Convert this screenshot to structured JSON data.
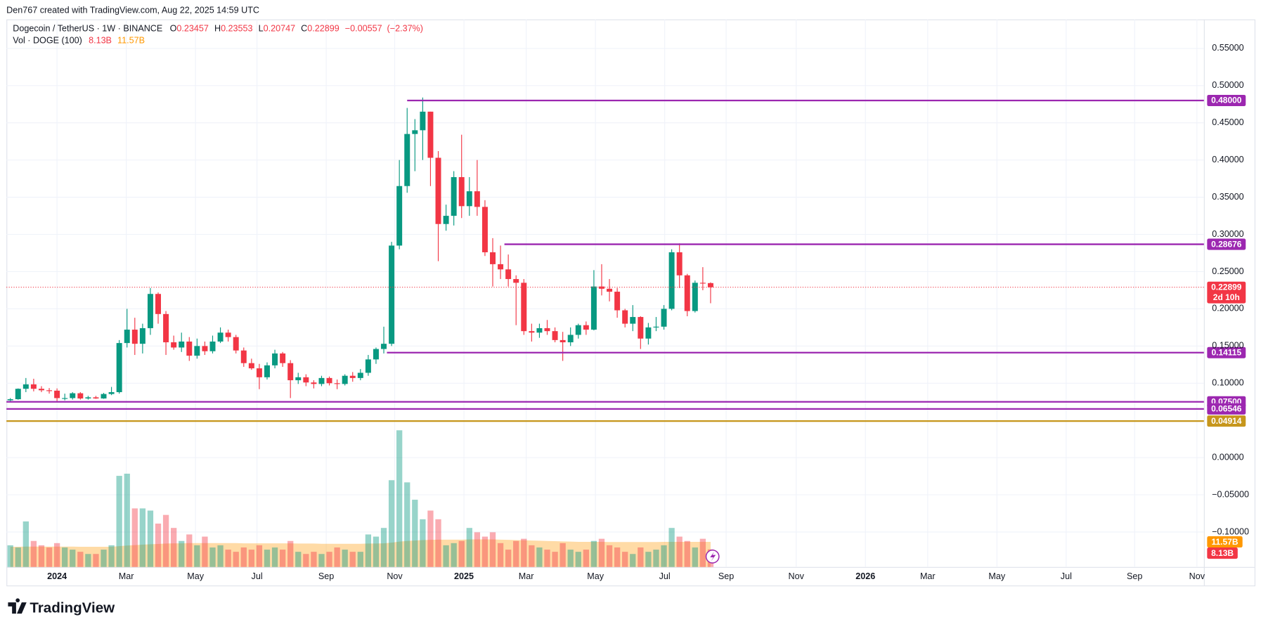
{
  "header": "Den767 created with TradingView.com, Aug 22, 2025 14:59 UTC",
  "chart_data": {
    "type": "candlestick",
    "title": "Dogecoin / TetherUS · 1W · BINANCE",
    "ohlc_legend": [
      {
        "label": "O",
        "value": 0.23457
      },
      {
        "label": "H",
        "value": 0.23553
      },
      {
        "label": "L",
        "value": 0.20747
      },
      {
        "label": "C",
        "value": 0.22899
      }
    ],
    "change": {
      "value": -0.00557,
      "label": "−0.00557"
    },
    "change_pct": {
      "value": -2.37,
      "label": "(−2.37%)"
    },
    "up_color": "#089981",
    "down_color": "#f23645",
    "open": [
      0.077,
      0.0785,
      0.0925,
      0.0985,
      0.0925,
      0.0905,
      0.09,
      0.08,
      0.08,
      0.0865,
      0.0795,
      0.081,
      0.0795,
      0.0855,
      0.088,
      0.154,
      0.172,
      0.153,
      0.174,
      0.22,
      0.193,
      0.155,
      0.148,
      0.156,
      0.137,
      0.15,
      0.143,
      0.156,
      0.168,
      0.162,
      0.144,
      0.127,
      0.12,
      0.108,
      0.124,
      0.14,
      0.127,
      0.104,
      0.108,
      0.101,
      0.099,
      0.107,
      0.1,
      0.099,
      0.11,
      0.107,
      0.114,
      0.132,
      0.146,
      0.153,
      0.285,
      0.365,
      0.435,
      0.44,
      0.465,
      0.403,
      0.314,
      0.325,
      0.377,
      0.338,
      0.358,
      0.337,
      0.276,
      0.26,
      0.253,
      0.24,
      0.235,
      0.17,
      0.168,
      0.174,
      0.17,
      0.158,
      0.155,
      0.165,
      0.178,
      0.172,
      0.23,
      0.227,
      0.223,
      0.198,
      0.18,
      0.189,
      0.16,
      0.175,
      0.176,
      0.2,
      0.276,
      0.245,
      0.197,
      0.235,
      0.23457
    ],
    "high": [
      0.08,
      0.093,
      0.107,
      0.106,
      0.096,
      0.0935,
      0.093,
      0.086,
      0.088,
      0.088,
      0.083,
      0.083,
      0.087,
      0.095,
      0.158,
      0.2,
      0.188,
      0.18,
      0.228,
      0.222,
      0.197,
      0.164,
      0.168,
      0.162,
      0.16,
      0.156,
      0.164,
      0.175,
      0.172,
      0.165,
      0.148,
      0.133,
      0.126,
      0.128,
      0.145,
      0.142,
      0.131,
      0.114,
      0.112,
      0.104,
      0.11,
      0.109,
      0.105,
      0.112,
      0.115,
      0.119,
      0.138,
      0.148,
      0.176,
      0.29,
      0.4,
      0.47,
      0.455,
      0.484,
      0.465,
      0.412,
      0.34,
      0.385,
      0.434,
      0.377,
      0.4,
      0.346,
      0.295,
      0.285,
      0.273,
      0.245,
      0.24,
      0.18,
      0.18,
      0.185,
      0.175,
      0.169,
      0.175,
      0.18,
      0.183,
      0.252,
      0.26,
      0.24,
      0.228,
      0.2,
      0.205,
      0.19,
      0.181,
      0.189,
      0.205,
      0.28,
      0.288,
      0.247,
      0.238,
      0.256,
      0.23553
    ],
    "low": [
      0.0745,
      0.0778,
      0.088,
      0.089,
      0.088,
      0.086,
      0.076,
      0.077,
      0.078,
      0.078,
      0.078,
      0.079,
      0.079,
      0.084,
      0.086,
      0.148,
      0.138,
      0.14,
      0.165,
      0.18,
      0.138,
      0.145,
      0.142,
      0.13,
      0.133,
      0.138,
      0.14,
      0.154,
      0.156,
      0.14,
      0.122,
      0.118,
      0.092,
      0.105,
      0.12,
      0.122,
      0.08,
      0.099,
      0.096,
      0.093,
      0.096,
      0.097,
      0.092,
      0.097,
      0.102,
      0.104,
      0.11,
      0.126,
      0.14,
      0.15,
      0.28,
      0.356,
      0.385,
      0.4,
      0.365,
      0.264,
      0.305,
      0.312,
      0.322,
      0.325,
      0.325,
      0.271,
      0.23,
      0.24,
      0.23,
      0.178,
      0.165,
      0.156,
      0.161,
      0.165,
      0.155,
      0.13,
      0.15,
      0.16,
      0.165,
      0.171,
      0.218,
      0.21,
      0.188,
      0.175,
      0.17,
      0.146,
      0.152,
      0.17,
      0.172,
      0.198,
      0.228,
      0.19,
      0.195,
      0.225,
      0.20747
    ],
    "close": [
      0.0785,
      0.0925,
      0.0985,
      0.0925,
      0.0905,
      0.09,
      0.08,
      0.08,
      0.0865,
      0.0795,
      0.081,
      0.0795,
      0.0855,
      0.088,
      0.154,
      0.172,
      0.153,
      0.174,
      0.22,
      0.193,
      0.155,
      0.148,
      0.156,
      0.137,
      0.15,
      0.143,
      0.156,
      0.168,
      0.162,
      0.144,
      0.127,
      0.12,
      0.108,
      0.124,
      0.14,
      0.127,
      0.104,
      0.108,
      0.101,
      0.099,
      0.107,
      0.1,
      0.099,
      0.11,
      0.107,
      0.114,
      0.132,
      0.146,
      0.153,
      0.285,
      0.365,
      0.435,
      0.44,
      0.465,
      0.403,
      0.314,
      0.325,
      0.377,
      0.338,
      0.358,
      0.337,
      0.276,
      0.26,
      0.253,
      0.24,
      0.235,
      0.17,
      0.168,
      0.174,
      0.17,
      0.158,
      0.155,
      0.165,
      0.178,
      0.172,
      0.23,
      0.227,
      0.223,
      0.198,
      0.18,
      0.189,
      0.16,
      0.175,
      0.176,
      0.2,
      0.276,
      0.245,
      0.197,
      0.235,
      0.2346,
      0.22899
    ],
    "volume": {
      "name": "Vol · DOGE (100)",
      "values": [
        10,
        9,
        21,
        12,
        10,
        9,
        11,
        9,
        8,
        7,
        6,
        6,
        8,
        10,
        42,
        43,
        27,
        27,
        26,
        20,
        24,
        18,
        12,
        15,
        10,
        14,
        9,
        10,
        8,
        7,
        9,
        8,
        10,
        8,
        9,
        8,
        12,
        7,
        6,
        7,
        6,
        7,
        9,
        8,
        7,
        7,
        15,
        14,
        18,
        40,
        63,
        39,
        31,
        22,
        26,
        22,
        10,
        11,
        12,
        18,
        16,
        14,
        16,
        11,
        8,
        12,
        13,
        10,
        9,
        8,
        7,
        11,
        8,
        7,
        8,
        12,
        13,
        10,
        9,
        7,
        6,
        9,
        7,
        8,
        10,
        18,
        14,
        12,
        9,
        13,
        8.13
      ],
      "last_label": "8.13B",
      "ma_color": "#ff9800",
      "ma_values": [
        9.3,
        9.3,
        9.4,
        9.4,
        9.4,
        9.4,
        9.4,
        9.4,
        9.4,
        9.3,
        9.3,
        9.3,
        9.3,
        9.3,
        9.6,
        9.9,
        10.1,
        10.3,
        10.5,
        10.6,
        10.8,
        10.9,
        10.9,
        11.0,
        11.0,
        11.0,
        11.0,
        11.0,
        11.0,
        11.0,
        10.9,
        10.9,
        10.9,
        10.9,
        10.9,
        10.9,
        10.9,
        10.8,
        10.8,
        10.8,
        10.7,
        10.7,
        10.7,
        10.7,
        10.7,
        10.7,
        10.8,
        10.8,
        10.9,
        11.2,
        11.7,
        12.0,
        12.2,
        12.4,
        12.5,
        12.6,
        12.6,
        12.6,
        12.6,
        12.7,
        12.7,
        12.7,
        12.7,
        12.6,
        12.5,
        12.4,
        12.3,
        12.2,
        12.1,
        12.0,
        11.9,
        11.8,
        11.7,
        11.6,
        11.6,
        11.6,
        11.6,
        11.5,
        11.5,
        11.5,
        11.5,
        11.5,
        11.5,
        11.5,
        11.6,
        11.6,
        11.6,
        11.6,
        11.6,
        11.6,
        11.57
      ],
      "ma_last_label": "11.57B"
    },
    "price_label": {
      "value": 0.22899,
      "label": "0.22899"
    },
    "countdown": "2d 10h",
    "levels": [
      {
        "value": 0.48,
        "label": "0.48000",
        "color": "#9c27b0",
        "from": 51
      },
      {
        "value": 0.28676,
        "label": "0.28676",
        "color": "#9c27b0",
        "from": 63.5
      },
      {
        "value": 0.14115,
        "label": "0.14115",
        "color": "#9c27b0",
        "from": 48.4
      },
      {
        "value": 0.075,
        "label": "0.07500",
        "color": "#9c27b0",
        "from": -0.5
      },
      {
        "value": 0.06546,
        "label": "0.06546",
        "color": "#9c27b0",
        "from": -0.5
      },
      {
        "value": 0.04914,
        "label": "0.04914",
        "color": "#c6961c",
        "from": -0.5
      }
    ],
    "ylim": [
      -0.147,
      0.589
    ],
    "yticks": [
      {
        "value": 0.55,
        "label": "0.55000"
      },
      {
        "value": 0.5,
        "label": "0.50000"
      },
      {
        "value": 0.45,
        "label": "0.45000"
      },
      {
        "value": 0.4,
        "label": "0.40000"
      },
      {
        "value": 0.35,
        "label": "0.35000"
      },
      {
        "value": 0.3,
        "label": "0.30000"
      },
      {
        "value": 0.25,
        "label": "0.25000"
      },
      {
        "value": 0.2,
        "label": "0.20000"
      },
      {
        "value": 0.15,
        "label": "0.15000"
      },
      {
        "value": 0.1,
        "label": "0.10000"
      },
      {
        "value": 0,
        "label": "0.00000"
      },
      {
        "value": -0.05,
        "label": "−0.05000"
      },
      {
        "value": -0.1,
        "label": "−0.10000"
      }
    ],
    "xlim": [
      -0.5,
      153.4
    ],
    "xticks": [
      {
        "value": 6.0,
        "label": "2024"
      },
      {
        "value": 14.9,
        "label": "Mar"
      },
      {
        "value": 23.8,
        "label": "May"
      },
      {
        "value": 31.7,
        "label": "Jul"
      },
      {
        "value": 40.6,
        "label": "Sep"
      },
      {
        "value": 49.4,
        "label": "Nov"
      },
      {
        "value": 58.3,
        "label": "2025"
      },
      {
        "value": 66.3,
        "label": "Mar"
      },
      {
        "value": 75.2,
        "label": "May"
      },
      {
        "value": 84.1,
        "label": "Jul"
      },
      {
        "value": 92.0,
        "label": "Sep"
      },
      {
        "value": 101.0,
        "label": "Nov"
      },
      {
        "value": 109.9,
        "label": "2026"
      },
      {
        "value": 117.9,
        "label": "Mar"
      },
      {
        "value": 126.8,
        "label": "May"
      },
      {
        "value": 135.7,
        "label": "Jul"
      },
      {
        "value": 144.5,
        "label": "Sep"
      },
      {
        "value": 152.5,
        "label": "Nov"
      }
    ],
    "grid": true
  },
  "footer": {
    "logo": "TradingView"
  }
}
